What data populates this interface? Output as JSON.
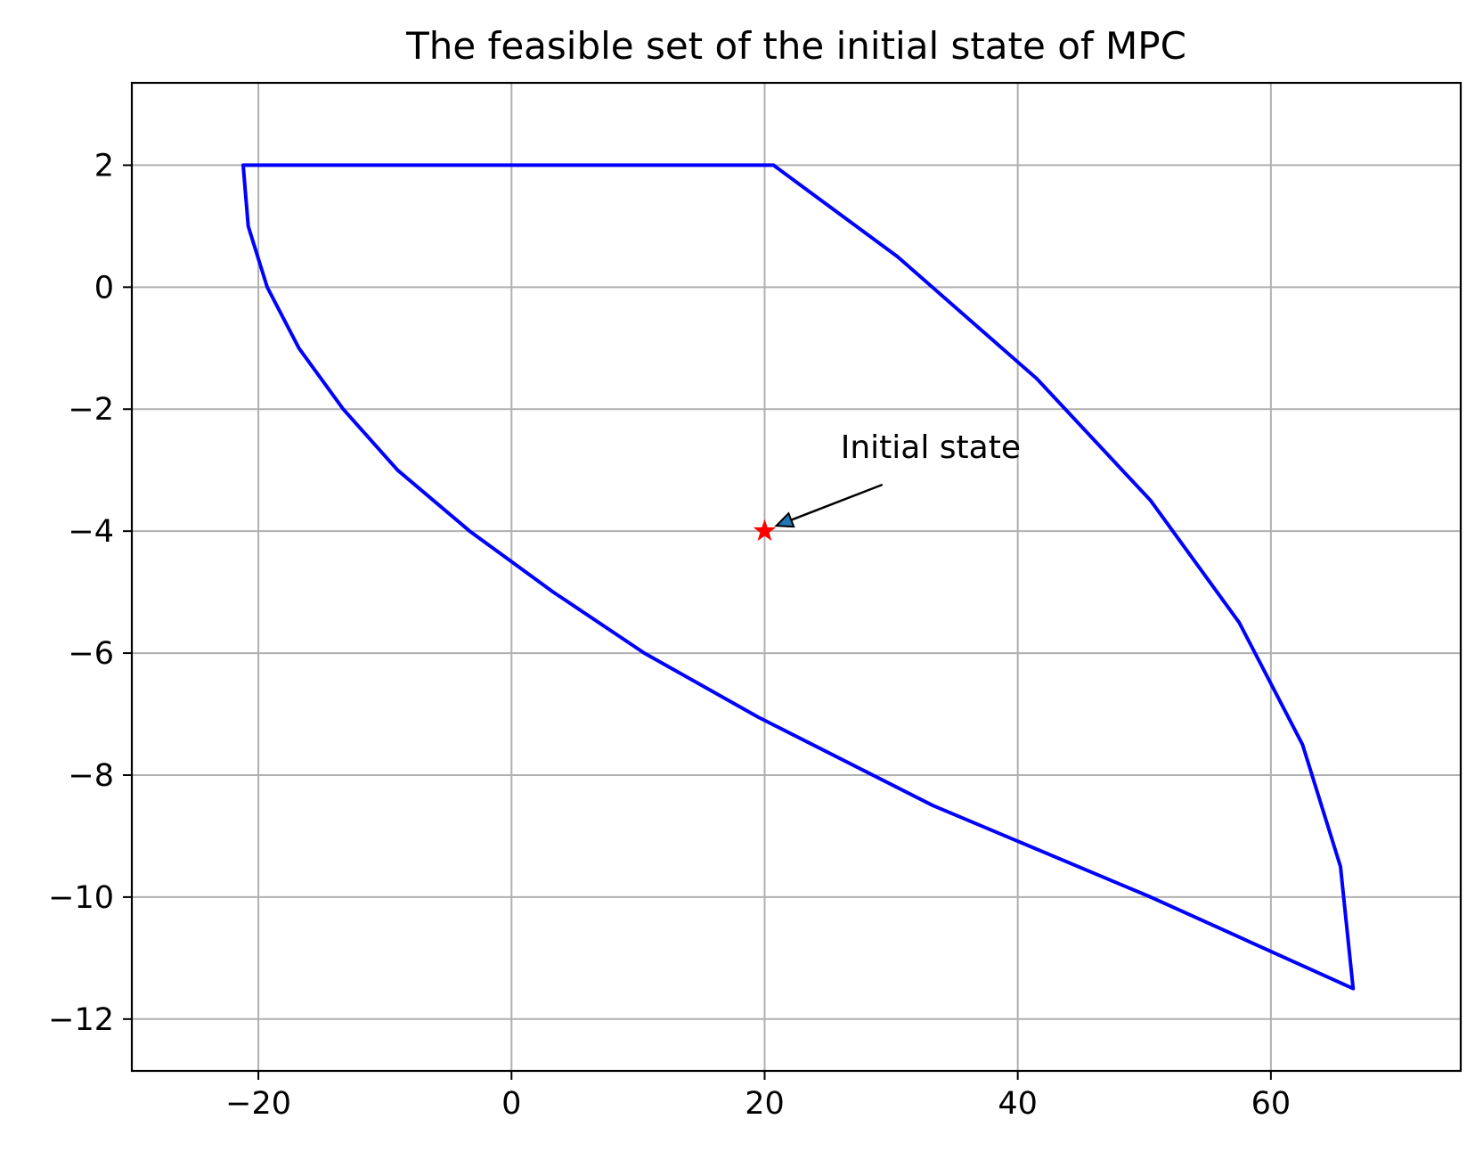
{
  "chart_data": {
    "type": "line",
    "title": "The feasible set of the initial state of MPC",
    "xlabel": "",
    "ylabel": "",
    "xlim": [
      -30,
      75
    ],
    "ylim": [
      -12.85,
      3.35
    ],
    "xticks": [
      -20,
      0,
      20,
      40,
      60
    ],
    "xtick_labels": [
      "−20",
      "0",
      "20",
      "40",
      "60"
    ],
    "yticks": [
      2,
      0,
      -2,
      -4,
      -6,
      -8,
      -10,
      -12
    ],
    "ytick_labels": [
      "2",
      "0",
      "−2",
      "−4",
      "−6",
      "−8",
      "−10",
      "−12"
    ],
    "grid": true,
    "series": [
      {
        "kind": "polygon",
        "color": "#0000ff",
        "x": [
          20.7,
          30.5,
          41.5,
          50.5,
          57.5,
          62.5,
          65.5,
          66.5,
          50.5,
          33.3,
          19.5,
          10.5,
          3.3,
          -3.3,
          -9,
          -13.3,
          -16.8,
          -19.3,
          -20.8,
          -21.2,
          20.7
        ],
        "y": [
          2,
          0.5,
          -1.5,
          -3.5,
          -5.5,
          -7.5,
          -9.5,
          -11.5,
          -10,
          -8.5,
          -7.05,
          -6,
          -5,
          -4,
          -3,
          -2,
          -1,
          0,
          1,
          2,
          2
        ]
      },
      {
        "kind": "marker",
        "marker": "star",
        "color": "#ff0000",
        "x": [
          20
        ],
        "y": [
          -4
        ]
      }
    ],
    "annotation": {
      "text": "Initial state",
      "point": [
        20,
        -4
      ],
      "text_position": [
        26,
        -2.8
      ]
    }
  }
}
